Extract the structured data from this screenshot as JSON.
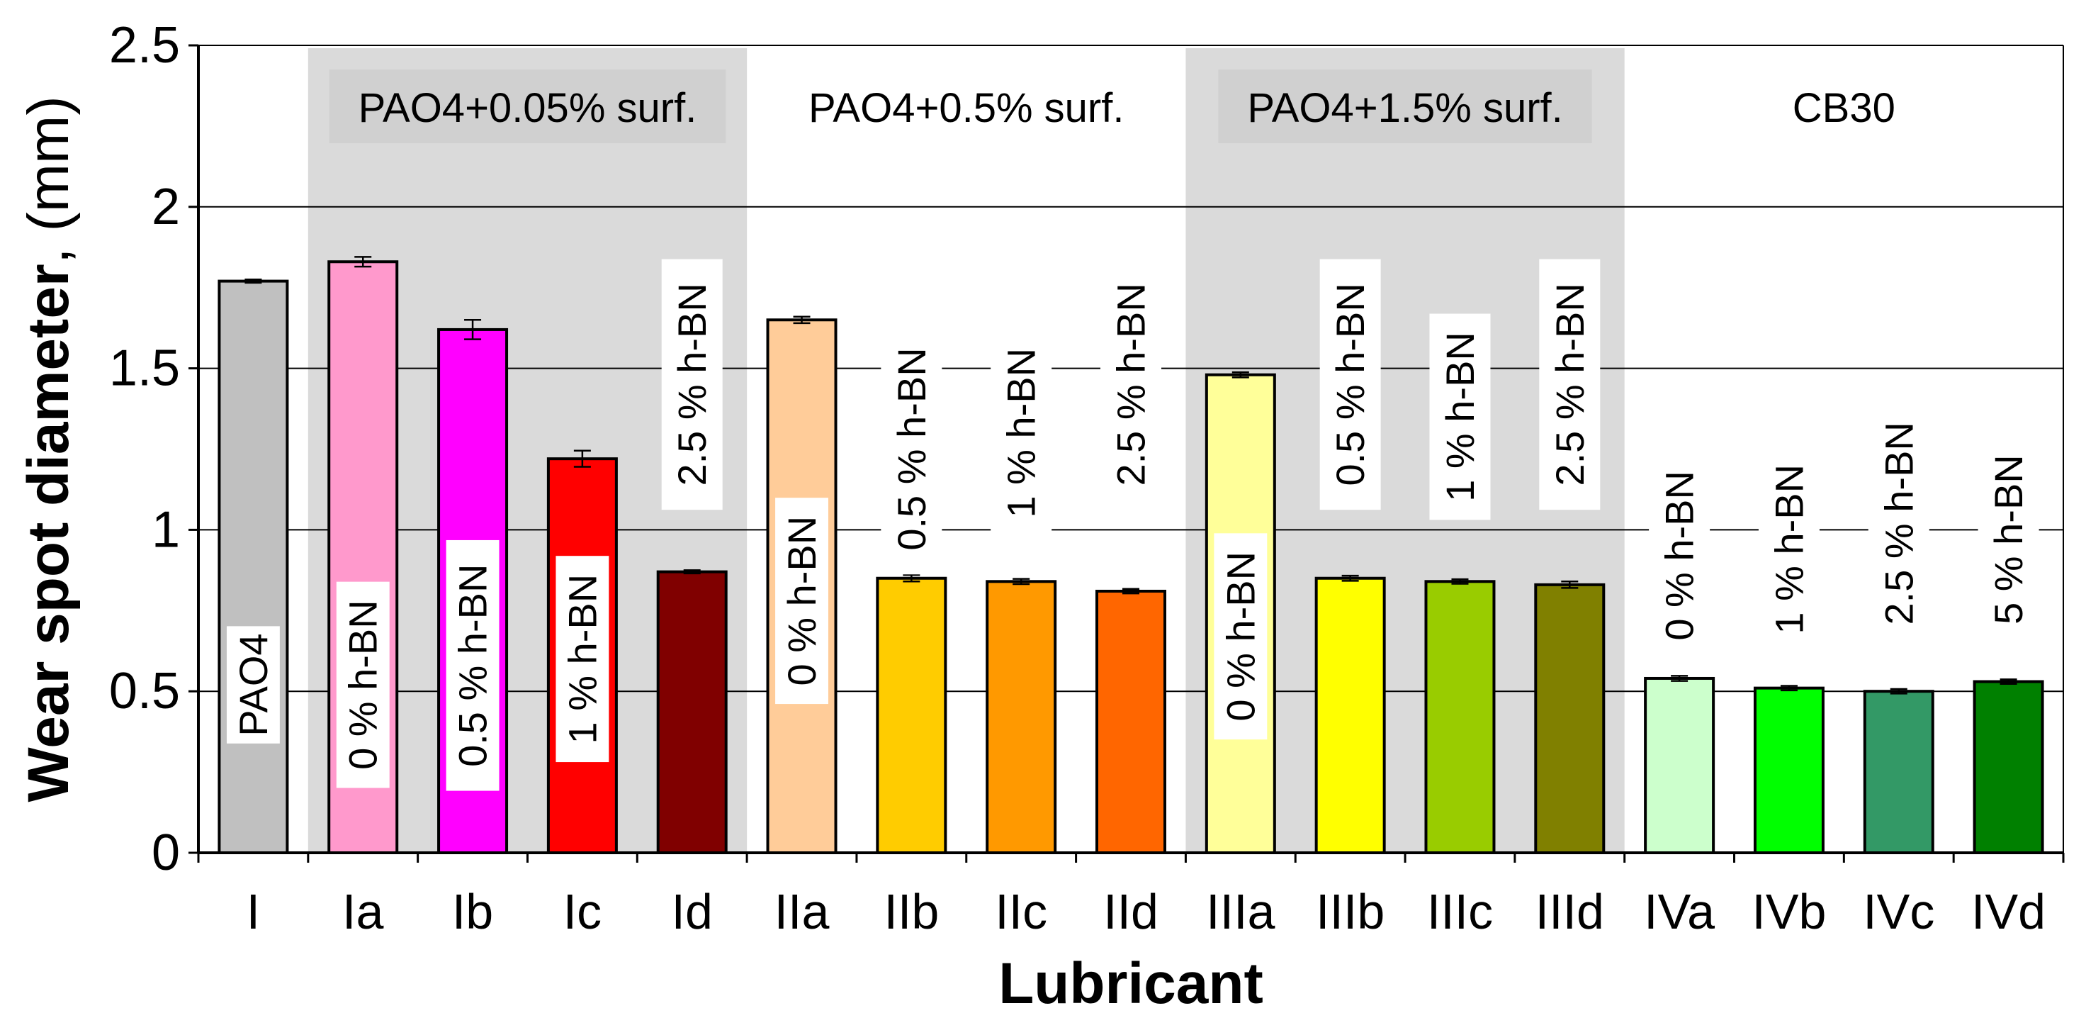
{
  "chart_data": {
    "type": "bar",
    "title": "",
    "xlabel": "Lubricant",
    "ylabel_bold": "Wear spot diameter",
    "ylabel_rest": ", (mm)",
    "ylim": [
      0,
      2.5
    ],
    "yticks": [
      "0",
      "0.5",
      "1",
      "1.5",
      "2",
      "2.5"
    ],
    "gridlines": [
      0.5,
      1,
      1.5,
      2
    ],
    "groups": [
      {
        "label": "",
        "start": 0,
        "end": 0,
        "shaded": false
      },
      {
        "label": "PAO4+0.05% surf.",
        "start": 1,
        "end": 4,
        "shaded": true
      },
      {
        "label": "PAO4+0.5% surf.",
        "start": 5,
        "end": 8,
        "shaded": false
      },
      {
        "label": "PAO4+1.5% surf.",
        "start": 9,
        "end": 12,
        "shaded": true
      },
      {
        "label": "CB30",
        "start": 13,
        "end": 16,
        "shaded": false
      }
    ],
    "categories": [
      "I",
      "Ia",
      "Ib",
      "Ic",
      "Id",
      "IIa",
      "IIb",
      "IIc",
      "IId",
      "IIIa",
      "IIIb",
      "IIIc",
      "IIId",
      "IVa",
      "IVb",
      "IVc",
      "IVd"
    ],
    "values": [
      1.77,
      1.83,
      1.62,
      1.22,
      0.87,
      1.65,
      0.85,
      0.84,
      0.81,
      1.48,
      0.85,
      0.84,
      0.83,
      0.54,
      0.51,
      0.5,
      0.53
    ],
    "errors": [
      0.005,
      0.015,
      0.03,
      0.025,
      0.005,
      0.01,
      0.01,
      0.008,
      0.007,
      0.008,
      0.008,
      0.007,
      0.01,
      0.008,
      0.007,
      0.007,
      0.007
    ],
    "colors": [
      "#c0c0c0",
      "#ff99cc",
      "#ff00ff",
      "#ff0000",
      "#800000",
      "#ffcc99",
      "#ffcc00",
      "#ff9900",
      "#ff6600",
      "#ffff99",
      "#ffff00",
      "#99cc00",
      "#808000",
      "#ccffcc",
      "#00ff00",
      "#339966",
      "#008000"
    ],
    "bar_labels": [
      {
        "text": "PAO4",
        "center": 0.52,
        "inside": true
      },
      {
        "text": "0 % h-BN",
        "center": 0.52,
        "inside": true
      },
      {
        "text": "0.5 % h-BN",
        "center": 0.58,
        "inside": true
      },
      {
        "text": "1 % h-BN",
        "center": 0.6,
        "inside": true
      },
      {
        "text": "2.5 % h-BN",
        "center": 1.45,
        "inside": false
      },
      {
        "text": "0 % h-BN",
        "center": 0.78,
        "inside": true
      },
      {
        "text": "0.5 % h-BN",
        "center": 1.25,
        "inside": false
      },
      {
        "text": "1 % h-BN",
        "center": 1.3,
        "inside": false
      },
      {
        "text": "2.5 % h-BN",
        "center": 1.45,
        "inside": false
      },
      {
        "text": "0 % h-BN",
        "center": 0.67,
        "inside": true
      },
      {
        "text": "0.5 % h-BN",
        "center": 1.45,
        "inside": false
      },
      {
        "text": "1 % h-BN",
        "center": 1.35,
        "inside": false
      },
      {
        "text": "2.5 % h-BN",
        "center": 1.45,
        "inside": false
      },
      {
        "text": "0 % h-BN",
        "center": 0.92,
        "inside": false
      },
      {
        "text": "1 % h-BN",
        "center": 0.94,
        "inside": false
      },
      {
        "text": "2.5 % h-BN",
        "center": 1.02,
        "inside": false
      },
      {
        "text": "5 % h-BN",
        "center": 0.97,
        "inside": false
      }
    ]
  }
}
